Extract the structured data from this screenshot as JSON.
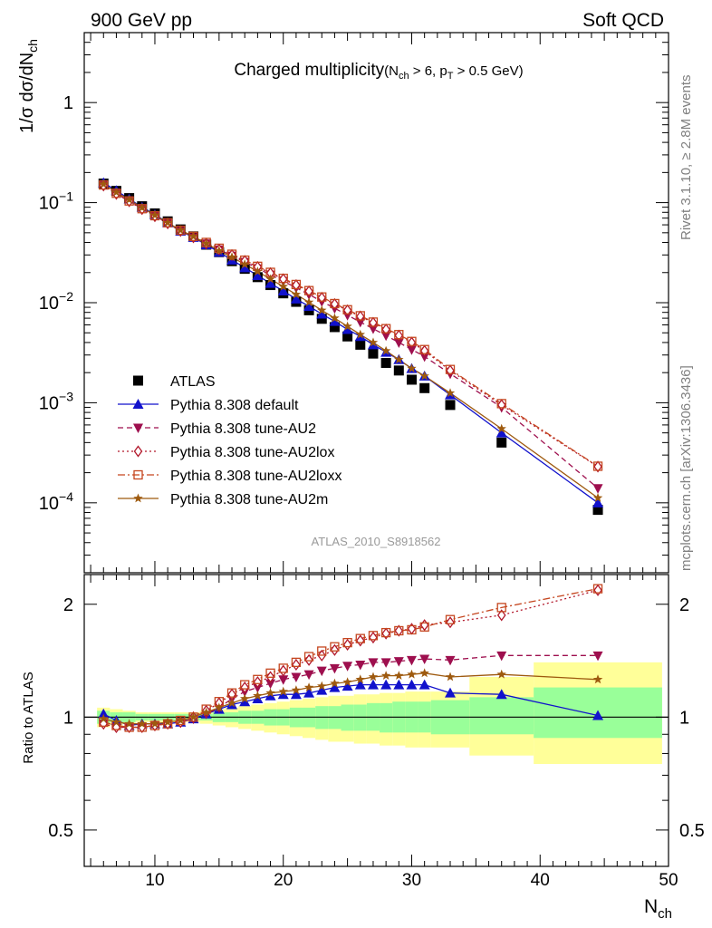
{
  "header": {
    "left": "900 GeV pp",
    "right": "Soft QCD",
    "side_top": "Rivet 3.1.10, ≥ 2.8M events",
    "side_bottom": "mcplots.cern.ch [arXiv:1306.3436]",
    "analysis_ref": "ATLAS_2010_S8918562"
  },
  "colors": {
    "data": "#000000",
    "default": "#1111cc",
    "au2": "#9e0f4e",
    "au2lox": "#b2182b",
    "au2loxx": "#c5461f",
    "au2m": "#9e5a0f",
    "band_inner": "#99ff99",
    "band_outer": "#ffff99"
  },
  "chart_data": [
    {
      "panel": "main",
      "type": "scatter",
      "title": {
        "main": "Charged multiplicity",
        "cut_open": "(N",
        "cut_sub1": "ch",
        "cut_mid": " > 6, p",
        "cut_sub2": "T",
        "cut_close": " > 0.5 GeV)"
      },
      "ylabel": {
        "pre": "1/σ dσ/dN",
        "sub": "ch"
      },
      "yscale": "log",
      "ylim": [
        2e-05,
        5
      ],
      "xlim": [
        4.5,
        50
      ],
      "x": [
        6,
        7,
        8,
        9,
        10,
        11,
        12,
        13,
        14,
        15,
        16,
        17,
        18,
        19,
        20,
        21,
        22,
        23,
        24,
        25,
        26,
        27,
        28,
        29,
        30,
        31,
        33,
        37,
        44.5
      ],
      "yticks": [
        {
          "value": 0.0001,
          "base": "10",
          "exp": "−4"
        },
        {
          "value": 0.001,
          "base": "10",
          "exp": "−3"
        },
        {
          "value": 0.01,
          "base": "10",
          "exp": "−2"
        },
        {
          "value": 0.1,
          "base": "10",
          "exp": "−1"
        },
        {
          "value": 1,
          "base": "1",
          "exp": ""
        }
      ],
      "legend_position": "lower-left",
      "legend": [
        {
          "key": "data",
          "label": "ATLAS"
        },
        {
          "key": "default",
          "label": "Pythia 8.308 default"
        },
        {
          "key": "au2",
          "label": "Pythia 8.308 tune-AU2"
        },
        {
          "key": "au2lox",
          "label": "Pythia 8.308 tune-AU2lox"
        },
        {
          "key": "au2loxx",
          "label": "Pythia 8.308 tune-AU2loxx"
        },
        {
          "key": "au2m",
          "label": "Pythia 8.308 tune-AU2m"
        }
      ],
      "series": [
        {
          "key": "data",
          "marker": "square",
          "line": "none",
          "values": [
            0.155,
            0.131,
            0.111,
            0.092,
            0.078,
            0.065,
            0.054,
            0.046,
            0.038,
            0.032,
            0.026,
            0.0218,
            0.018,
            0.015,
            0.0124,
            0.0102,
            0.0084,
            0.0069,
            0.0057,
            0.0046,
            0.0038,
            0.0031,
            0.0025,
            0.0021,
            0.0017,
            0.0014,
            0.00095,
            0.0004,
            8.5e-05
          ]
        },
        {
          "key": "default",
          "marker": "triangle-up",
          "line": "solid",
          "values": [
            0.158,
            0.132,
            0.109,
            0.09,
            0.076,
            0.063,
            0.052,
            0.045,
            0.038,
            0.032,
            0.0267,
            0.0224,
            0.0187,
            0.0156,
            0.0131,
            0.0109,
            0.0092,
            0.0077,
            0.0065,
            0.0054,
            0.0046,
            0.0038,
            0.0032,
            0.0027,
            0.0022,
            0.00185,
            0.0012,
            0.0005,
            0.0001
          ]
        },
        {
          "key": "au2",
          "marker": "triangle-down",
          "line": "dashed",
          "values": [
            0.148,
            0.123,
            0.104,
            0.087,
            0.074,
            0.062,
            0.052,
            0.045,
            0.039,
            0.034,
            0.0295,
            0.0255,
            0.022,
            0.019,
            0.0164,
            0.0141,
            0.0121,
            0.0103,
            0.0088,
            0.0075,
            0.0064,
            0.0055,
            0.0047,
            0.004,
            0.0034,
            0.0029,
            0.00195,
            0.0009,
            0.00014
          ]
        },
        {
          "key": "au2lox",
          "marker": "diamond",
          "line": "dotted",
          "values": [
            0.148,
            0.122,
            0.103,
            0.086,
            0.073,
            0.062,
            0.052,
            0.045,
            0.039,
            0.034,
            0.03,
            0.0262,
            0.0228,
            0.0198,
            0.0172,
            0.015,
            0.013,
            0.0112,
            0.0097,
            0.0084,
            0.0073,
            0.0063,
            0.0054,
            0.0047,
            0.004,
            0.0033,
            0.0021,
            0.00095,
            0.00023
          ]
        },
        {
          "key": "au2loxx",
          "marker": "open-square",
          "line": "dashdot",
          "values": [
            0.15,
            0.124,
            0.104,
            0.087,
            0.074,
            0.063,
            0.053,
            0.046,
            0.04,
            0.035,
            0.0305,
            0.0266,
            0.0231,
            0.0201,
            0.0175,
            0.0152,
            0.0132,
            0.0114,
            0.0098,
            0.0085,
            0.0074,
            0.0064,
            0.0055,
            0.0048,
            0.0041,
            0.0034,
            0.00215,
            0.00098,
            0.000232
          ]
        },
        {
          "key": "au2m",
          "marker": "star",
          "line": "solid",
          "values": [
            0.153,
            0.127,
            0.107,
            0.089,
            0.075,
            0.063,
            0.053,
            0.046,
            0.039,
            0.033,
            0.0285,
            0.0242,
            0.0205,
            0.0172,
            0.0145,
            0.0121,
            0.0101,
            0.0084,
            0.007,
            0.0058,
            0.0048,
            0.004,
            0.0033,
            0.0027,
            0.0022,
            0.00185,
            0.00125,
            0.00055,
            0.000112
          ]
        }
      ]
    },
    {
      "panel": "ratio",
      "type": "line",
      "ylabel": "Ratio to ATLAS",
      "xlabel": {
        "pre": "N",
        "sub": "ch"
      },
      "yscale": "log",
      "ylim": [
        0.4,
        2.4
      ],
      "xlim": [
        4.5,
        50
      ],
      "yticks": [
        0.5,
        1,
        2
      ],
      "ytick_labels": [
        "0.5",
        "1",
        "2"
      ],
      "xticks": [
        10,
        20,
        30,
        40,
        50
      ],
      "xtick_labels": [
        "10",
        "20",
        "30",
        "40",
        "50"
      ],
      "reference": 1,
      "x": [
        6,
        7,
        8,
        9,
        10,
        11,
        12,
        13,
        14,
        15,
        16,
        17,
        18,
        19,
        20,
        21,
        22,
        23,
        24,
        25,
        26,
        27,
        28,
        29,
        30,
        31,
        33,
        37,
        44.5
      ],
      "bands": {
        "edges": [
          5.5,
          6.5,
          7.5,
          8.5,
          9.5,
          10.5,
          11.5,
          12.5,
          13.5,
          14.5,
          15.5,
          16.5,
          17.5,
          18.5,
          19.5,
          20.5,
          21.5,
          22.5,
          23.5,
          24.5,
          25.5,
          26.5,
          27.5,
          28.5,
          29.5,
          30.5,
          31.5,
          34.5,
          39.5,
          49.5
        ],
        "inner_lo": [
          0.96,
          0.97,
          0.97,
          0.98,
          0.98,
          0.98,
          0.98,
          0.98,
          0.98,
          0.97,
          0.97,
          0.96,
          0.96,
          0.95,
          0.95,
          0.94,
          0.94,
          0.93,
          0.93,
          0.92,
          0.92,
          0.92,
          0.91,
          0.91,
          0.91,
          0.91,
          0.9,
          0.9,
          0.88
        ],
        "inner_hi": [
          1.04,
          1.03,
          1.03,
          1.02,
          1.02,
          1.02,
          1.02,
          1.02,
          1.02,
          1.03,
          1.03,
          1.04,
          1.04,
          1.05,
          1.05,
          1.06,
          1.06,
          1.07,
          1.07,
          1.08,
          1.08,
          1.09,
          1.09,
          1.1,
          1.1,
          1.1,
          1.11,
          1.13,
          1.2
        ],
        "outer_lo": [
          0.94,
          0.95,
          0.96,
          0.97,
          0.97,
          0.97,
          0.97,
          0.97,
          0.96,
          0.95,
          0.94,
          0.93,
          0.92,
          0.91,
          0.9,
          0.89,
          0.88,
          0.87,
          0.86,
          0.86,
          0.85,
          0.85,
          0.84,
          0.84,
          0.83,
          0.83,
          0.83,
          0.79,
          0.75
        ],
        "outer_hi": [
          1.06,
          1.05,
          1.04,
          1.03,
          1.03,
          1.03,
          1.03,
          1.03,
          1.04,
          1.05,
          1.06,
          1.07,
          1.08,
          1.09,
          1.1,
          1.11,
          1.12,
          1.13,
          1.14,
          1.14,
          1.15,
          1.15,
          1.16,
          1.16,
          1.17,
          1.17,
          1.17,
          1.28,
          1.4
        ]
      },
      "series": [
        {
          "key": "default",
          "values": [
            1.02,
            0.98,
            0.95,
            0.96,
            0.96,
            0.96,
            0.97,
            0.99,
            1.02,
            1.05,
            1.08,
            1.1,
            1.12,
            1.14,
            1.15,
            1.15,
            1.16,
            1.18,
            1.2,
            1.21,
            1.22,
            1.22,
            1.22,
            1.22,
            1.22,
            1.22,
            1.16,
            1.15,
            1.01
          ]
        },
        {
          "key": "au2",
          "values": [
            0.96,
            0.94,
            0.94,
            0.94,
            0.95,
            0.96,
            0.97,
            0.99,
            1.02,
            1.06,
            1.12,
            1.17,
            1.2,
            1.23,
            1.26,
            1.28,
            1.3,
            1.33,
            1.35,
            1.37,
            1.38,
            1.4,
            1.4,
            1.41,
            1.42,
            1.43,
            1.42,
            1.46,
            1.46
          ]
        },
        {
          "key": "au2lox",
          "values": [
            0.96,
            0.94,
            0.94,
            0.94,
            0.95,
            0.96,
            0.97,
            1.0,
            1.04,
            1.09,
            1.15,
            1.2,
            1.24,
            1.28,
            1.33,
            1.38,
            1.42,
            1.46,
            1.51,
            1.56,
            1.6,
            1.63,
            1.67,
            1.7,
            1.72,
            1.76,
            1.79,
            1.87,
            2.18
          ]
        },
        {
          "key": "au2loxx",
          "values": [
            0.97,
            0.95,
            0.94,
            0.94,
            0.95,
            0.96,
            0.98,
            1.0,
            1.05,
            1.1,
            1.16,
            1.22,
            1.26,
            1.31,
            1.35,
            1.4,
            1.45,
            1.5,
            1.54,
            1.58,
            1.62,
            1.65,
            1.68,
            1.7,
            1.71,
            1.74,
            1.82,
            1.96,
            2.2
          ]
        },
        {
          "key": "au2m",
          "values": [
            0.99,
            0.97,
            0.96,
            0.96,
            0.96,
            0.97,
            0.98,
            1.0,
            1.03,
            1.06,
            1.09,
            1.12,
            1.14,
            1.16,
            1.17,
            1.18,
            1.2,
            1.21,
            1.23,
            1.24,
            1.26,
            1.28,
            1.29,
            1.29,
            1.3,
            1.31,
            1.28,
            1.3,
            1.26
          ]
        }
      ]
    }
  ]
}
